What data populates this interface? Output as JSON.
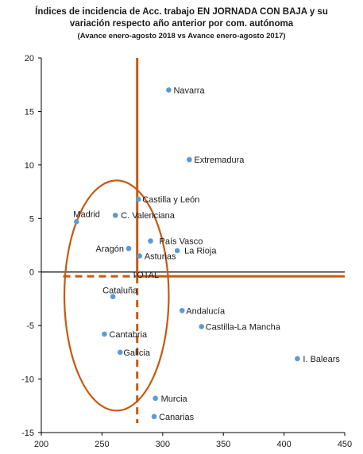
{
  "chart_data": {
    "type": "scatter",
    "title": "Índices de incidencia de Acc. trabajo EN JORNADA CON BAJA y su",
    "title_line2": "variación respecto año anterior por com. autónoma",
    "subtitle": "(Avance enero-agosto 2018 vs Avance enero-agosto 2017)",
    "xlim": [
      200,
      450
    ],
    "ylim": [
      -15,
      20
    ],
    "x_ticks": [
      "200",
      "250",
      "300",
      "350",
      "400",
      "450"
    ],
    "y_ticks": [
      "20",
      "15",
      "10",
      "5",
      "0",
      "-5",
      "-10",
      "-15"
    ],
    "grid": false,
    "points": [
      {
        "label": "Navarra",
        "x": 305,
        "y": 17.0
      },
      {
        "label": "Extremadura",
        "x": 322,
        "y": 10.5
      },
      {
        "label": "Castilla y León",
        "x": 280,
        "y": 6.8
      },
      {
        "label": "C. Valenciana",
        "x": 261,
        "y": 5.3
      },
      {
        "label": "Madrid",
        "x": 229,
        "y": 4.7
      },
      {
        "label": "País Vasco",
        "x": 290,
        "y": 2.9
      },
      {
        "label": "Aragón",
        "x": 272,
        "y": 2.2
      },
      {
        "label": "La Rioja",
        "x": 312,
        "y": 2.0
      },
      {
        "label": "Asturias",
        "x": 281,
        "y": 1.5
      },
      {
        "label": "TOTAL",
        "x": 279,
        "y": -0.4
      },
      {
        "label": "Cataluña",
        "x": 259,
        "y": -2.3
      },
      {
        "label": "Andalucía",
        "x": 316,
        "y": -3.6
      },
      {
        "label": "Castilla-La Mancha",
        "x": 332,
        "y": -5.1
      },
      {
        "label": "Cantabria",
        "x": 252,
        "y": -5.8
      },
      {
        "label": "Galicia",
        "x": 265,
        "y": -7.5
      },
      {
        "label": "I. Balears",
        "x": 411,
        "y": -8.1
      },
      {
        "label": "Murcia",
        "x": 294,
        "y": -11.8
      },
      {
        "label": "Canarias",
        "x": 293,
        "y": -13.5
      }
    ],
    "total_reference": {
      "x": 279,
      "y": -0.4
    },
    "colors": {
      "point": "#5B9BD5",
      "reference": "#C55A11",
      "axis": "#000000",
      "text": "#1a1a1a"
    }
  }
}
